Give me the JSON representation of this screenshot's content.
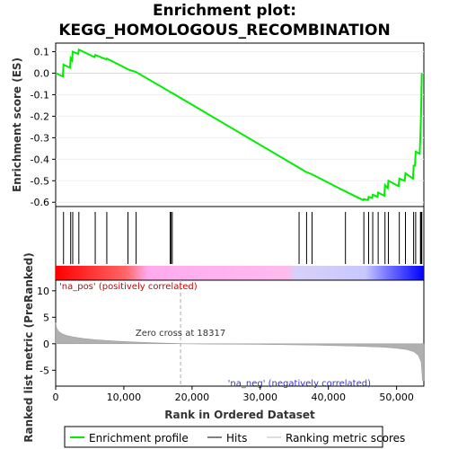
{
  "chart_data": {
    "type": "line",
    "title": "Enrichment plot: KEGG_HOMOLOGOUS_RECOMBINATION",
    "es_ylabel": "Enrichment score (ES)",
    "metric_ylabel": "Ranked list metric (PreRanked)",
    "xlabel": "Rank in Ordered Dataset",
    "x_max": 54000,
    "xlim": [
      0,
      54000
    ],
    "es_ylim": [
      -0.62,
      0.14
    ],
    "metric_ylim": [
      -8,
      12
    ],
    "x_ticks": [
      0,
      10000,
      20000,
      30000,
      40000,
      50000
    ],
    "x_tick_labels": [
      "0",
      "10,000",
      "20,000",
      "30,000",
      "40,000",
      "50,000"
    ],
    "es_ticks": [
      0.1,
      0.0,
      -0.1,
      -0.2,
      -0.3,
      -0.4,
      -0.5,
      -0.6
    ],
    "es_tick_labels": [
      "0.1",
      "0.0",
      "-0.1",
      "-0.2",
      "-0.3",
      "-0.4",
      "-0.5",
      "-0.6"
    ],
    "metric_ticks": [
      10,
      5,
      0,
      -5
    ],
    "metric_tick_labels": [
      "10",
      "5",
      "0",
      "-5"
    ],
    "enrichment_profile": [
      [
        0,
        0.0
      ],
      [
        1050,
        -0.015
      ],
      [
        1150,
        0.04
      ],
      [
        2100,
        0.025
      ],
      [
        2200,
        0.07
      ],
      [
        2400,
        0.06
      ],
      [
        2500,
        0.1
      ],
      [
        3300,
        0.09
      ],
      [
        3400,
        0.11
      ],
      [
        5700,
        0.075
      ],
      [
        5800,
        0.085
      ],
      [
        7400,
        0.065
      ],
      [
        7500,
        0.068
      ],
      [
        10500,
        0.02
      ],
      [
        10600,
        0.018
      ],
      [
        11800,
        0.005
      ],
      [
        16700,
        -0.085
      ],
      [
        16800,
        -0.088
      ],
      [
        16900,
        -0.09
      ],
      [
        17100,
        -0.092
      ],
      [
        35700,
        -0.44
      ],
      [
        36800,
        -0.46
      ],
      [
        37600,
        -0.47
      ],
      [
        42500,
        -0.55
      ],
      [
        45100,
        -0.59
      ],
      [
        45200,
        -0.585
      ],
      [
        45800,
        -0.59
      ],
      [
        45900,
        -0.575
      ],
      [
        46400,
        -0.58
      ],
      [
        46500,
        -0.565
      ],
      [
        47200,
        -0.575
      ],
      [
        47300,
        -0.555
      ],
      [
        48200,
        -0.57
      ],
      [
        48300,
        -0.52
      ],
      [
        48700,
        -0.535
      ],
      [
        48800,
        -0.5
      ],
      [
        50300,
        -0.525
      ],
      [
        50400,
        -0.49
      ],
      [
        51200,
        -0.5
      ],
      [
        51300,
        -0.465
      ],
      [
        52400,
        -0.49
      ],
      [
        52500,
        -0.43
      ],
      [
        52700,
        -0.43
      ],
      [
        52800,
        -0.365
      ],
      [
        53400,
        -0.375
      ],
      [
        53500,
        -0.28
      ],
      [
        53600,
        -0.17
      ],
      [
        53700,
        0.0
      ]
    ],
    "hits": [
      1150,
      2200,
      2500,
      3400,
      5800,
      7500,
      10600,
      11800,
      16800,
      16900,
      17100,
      35700,
      36800,
      37600,
      42500,
      45200,
      45900,
      46500,
      47300,
      48300,
      48800,
      50400,
      51300,
      52500,
      52800,
      53500,
      53600,
      53700
    ],
    "zero_cross": 18317,
    "zero_cross_label": "Zero cross at 18317",
    "pos_label": "'na_pos' (positively correlated)",
    "neg_label": "'na_neg' (negatively correlated)",
    "metric_profile": [
      [
        0,
        4.0
      ],
      [
        150,
        3.0
      ],
      [
        400,
        2.4
      ],
      [
        800,
        2.0
      ],
      [
        1500,
        1.6
      ],
      [
        2500,
        1.3
      ],
      [
        4000,
        1.0
      ],
      [
        6000,
        0.75
      ],
      [
        9000,
        0.5
      ],
      [
        12000,
        0.3
      ],
      [
        15000,
        0.15
      ],
      [
        18000,
        0.05
      ],
      [
        18317,
        0.0
      ],
      [
        22000,
        -0.05
      ],
      [
        30000,
        -0.12
      ],
      [
        38000,
        -0.25
      ],
      [
        44000,
        -0.45
      ],
      [
        48000,
        -0.65
      ],
      [
        50000,
        -0.85
      ],
      [
        51500,
        -1.1
      ],
      [
        52500,
        -1.5
      ],
      [
        53200,
        -2.2
      ],
      [
        53600,
        -3.5
      ],
      [
        53800,
        -7.0
      ],
      [
        54000,
        -7.0
      ]
    ],
    "legend": [
      "Enrichment profile",
      "Hits",
      "Ranking metric scores"
    ],
    "colors": {
      "profile": "#00ee00",
      "hits": "#000000",
      "metric_fill": "#b0b0b0",
      "zero_cross_line": "#aaaaaa",
      "pos_text": "#cc0000",
      "neg_text": "#3333cc",
      "bar_gradient": [
        "#ff0000",
        "#ff9090",
        "#ffbbee",
        "#ddd4f4",
        "#c8c8ff",
        "#6666ff",
        "#0000ff"
      ]
    }
  }
}
